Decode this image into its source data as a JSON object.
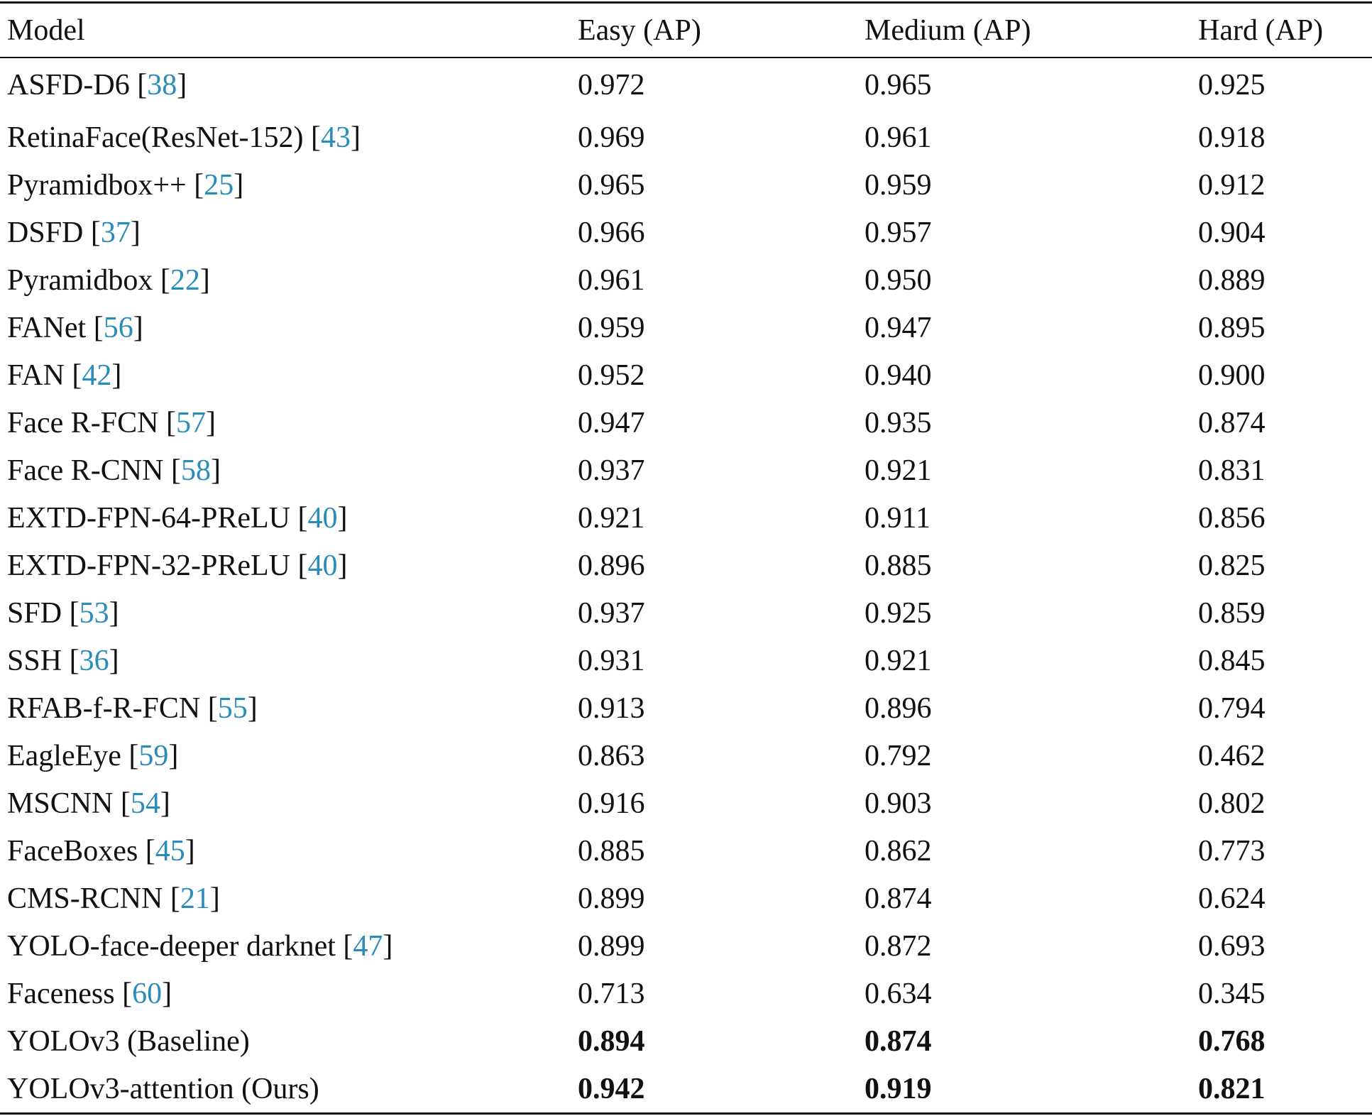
{
  "headers": [
    "Model",
    "Easy (AP)",
    "Medium (AP)",
    "Hard (AP)"
  ],
  "rows": [
    {
      "model": "ASFD-D6",
      "ref": "38",
      "easy": "0.972",
      "medium": "0.965",
      "hard": "0.925",
      "bold": false
    },
    {
      "model": "RetinaFace(ResNet-152)",
      "ref": "43",
      "easy": "0.969",
      "medium": "0.961",
      "hard": "0.918",
      "bold": false
    },
    {
      "model": "Pyramidbox++",
      "ref": "25",
      "easy": "0.965",
      "medium": "0.959",
      "hard": "0.912",
      "bold": false
    },
    {
      "model": "DSFD",
      "ref": "37",
      "easy": "0.966",
      "medium": "0.957",
      "hard": "0.904",
      "bold": false
    },
    {
      "model": "Pyramidbox",
      "ref": "22",
      "easy": "0.961",
      "medium": "0.950",
      "hard": "0.889",
      "bold": false
    },
    {
      "model": "FANet",
      "ref": "56",
      "easy": "0.959",
      "medium": "0.947",
      "hard": "0.895",
      "bold": false
    },
    {
      "model": "FAN",
      "ref": "42",
      "easy": "0.952",
      "medium": "0.940",
      "hard": "0.900",
      "bold": false
    },
    {
      "model": "Face R-FCN",
      "ref": "57",
      "easy": "0.947",
      "medium": "0.935",
      "hard": "0.874",
      "bold": false
    },
    {
      "model": "Face R-CNN",
      "ref": "58",
      "easy": "0.937",
      "medium": "0.921",
      "hard": "0.831",
      "bold": false
    },
    {
      "model": "EXTD-FPN-64-PReLU",
      "ref": "40",
      "easy": "0.921",
      "medium": "0.911",
      "hard": "0.856",
      "bold": false
    },
    {
      "model": "EXTD-FPN-32-PReLU",
      "ref": "40",
      "easy": "0.896",
      "medium": "0.885",
      "hard": "0.825",
      "bold": false
    },
    {
      "model": "SFD",
      "ref": "53",
      "easy": "0.937",
      "medium": "0.925",
      "hard": "0.859",
      "bold": false
    },
    {
      "model": "SSH",
      "ref": "36",
      "easy": "0.931",
      "medium": "0.921",
      "hard": "0.845",
      "bold": false
    },
    {
      "model": "RFAB-f-R-FCN",
      "ref": "55",
      "easy": "0.913",
      "medium": "0.896",
      "hard": "0.794",
      "bold": false
    },
    {
      "model": "EagleEye",
      "ref": "59",
      "easy": "0.863",
      "medium": "0.792",
      "hard": "0.462",
      "bold": false
    },
    {
      "model": "MSCNN",
      "ref": "54",
      "easy": "0.916",
      "medium": "0.903",
      "hard": "0.802",
      "bold": false
    },
    {
      "model": "FaceBoxes",
      "ref": "45",
      "easy": "0.885",
      "medium": "0.862",
      "hard": "0.773",
      "bold": false
    },
    {
      "model": "CMS-RCNN",
      "ref": "21",
      "easy": "0.899",
      "medium": "0.874",
      "hard": "0.624",
      "bold": false
    },
    {
      "model": "YOLO-face-deeper darknet",
      "ref": "47",
      "easy": "0.899",
      "medium": "0.872",
      "hard": "0.693",
      "bold": false
    },
    {
      "model": "Faceness",
      "ref": "60",
      "easy": "0.713",
      "medium": "0.634",
      "hard": "0.345",
      "bold": false
    },
    {
      "model": "YOLOv3 (Baseline)",
      "ref": "",
      "easy": "0.894",
      "medium": "0.874",
      "hard": "0.768",
      "bold": true
    },
    {
      "model": "YOLOv3-attention (Ours)",
      "ref": "",
      "easy": "0.942",
      "medium": "0.919",
      "hard": "0.821",
      "bold": true
    }
  ],
  "colors": {
    "text": "#111111",
    "ref_link": "#2a8cb8",
    "rule": "#111111"
  }
}
